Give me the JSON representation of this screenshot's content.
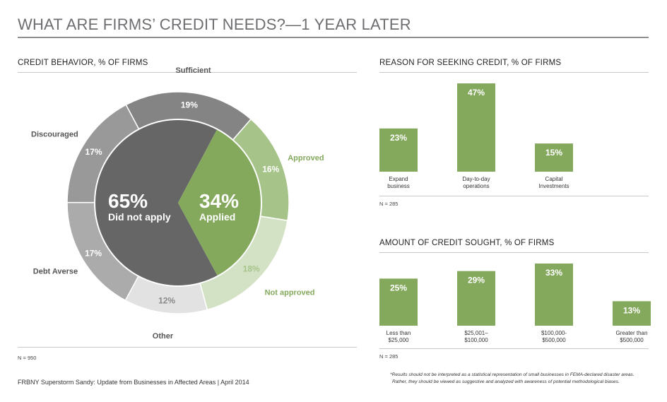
{
  "title": "WHAT ARE FIRMS’ CREDIT NEEDS?—1 YEAR LATER",
  "colors": {
    "green": "#84a95d",
    "green_light": "#a6c48a",
    "green_pale": "#d3e2c5",
    "gray_dark": "#666666",
    "gray_sufficient": "#848484",
    "gray_discouraged": "#999999",
    "gray_debt": "#ababab",
    "gray_other": "#e2e2e2"
  },
  "footer": "FRBNY Superstorm Sandy: Update from Businesses in Affected Areas | April 2014",
  "disclaimer_line1": "*Results should not be interpreted as a statistical representation of small businesses in FEMA-declared disaster areas.",
  "disclaimer_line2": "Rather, they should be viewed as suggestive and analyzed with awareness of potential methodological biases.",
  "chart_data": [
    {
      "type": "pie",
      "title": "CREDIT BEHAVIOR, % OF FIRMS",
      "note": "N = 950",
      "inner": [
        {
          "label": "Did not apply",
          "value": 65,
          "value_label": "65%"
        },
        {
          "label": "Applied",
          "value": 34,
          "value_label": "34%"
        }
      ],
      "outer": [
        {
          "label": "Sufficient",
          "value": 19,
          "value_label": "19%"
        },
        {
          "label": "Approved",
          "value": 16,
          "value_label": "16%"
        },
        {
          "label": "Not approved",
          "value": 18,
          "value_label": "18%"
        },
        {
          "label": "Other",
          "value": 12,
          "value_label": "12%"
        },
        {
          "label": "Debt Averse",
          "value": 17,
          "value_label": "17%"
        },
        {
          "label": "Discouraged",
          "value": 17,
          "value_label": "17%"
        }
      ]
    },
    {
      "type": "bar",
      "title": "REASON FOR SEEKING CREDIT, % OF FIRMS",
      "note": "N = 285",
      "categories": [
        "Expand business",
        "Day-to-day operations",
        "Capital Investments"
      ],
      "category_lines": [
        [
          "Expand",
          "business"
        ],
        [
          "Day-to-day",
          "operations"
        ],
        [
          "Capital",
          "Investments"
        ]
      ],
      "values": [
        23,
        47,
        15
      ],
      "value_labels": [
        "23%",
        "47%",
        "15%"
      ]
    },
    {
      "type": "bar",
      "title": "AMOUNT OF CREDIT SOUGHT, % OF FIRMS",
      "note": "N = 285",
      "categories": [
        "Less than $25,000",
        "$25,001–$100,000",
        "$100,000-$500,000",
        "Greater than $500,000"
      ],
      "category_lines": [
        [
          "Less than",
          "$25,000"
        ],
        [
          "$25,001–",
          "$100,000"
        ],
        [
          "$100,000-",
          "$500,000"
        ],
        [
          "Greater than",
          "$500,000"
        ]
      ],
      "values": [
        25,
        29,
        33,
        13
      ],
      "value_labels": [
        "25%",
        "29%",
        "33%",
        "13%"
      ]
    }
  ]
}
